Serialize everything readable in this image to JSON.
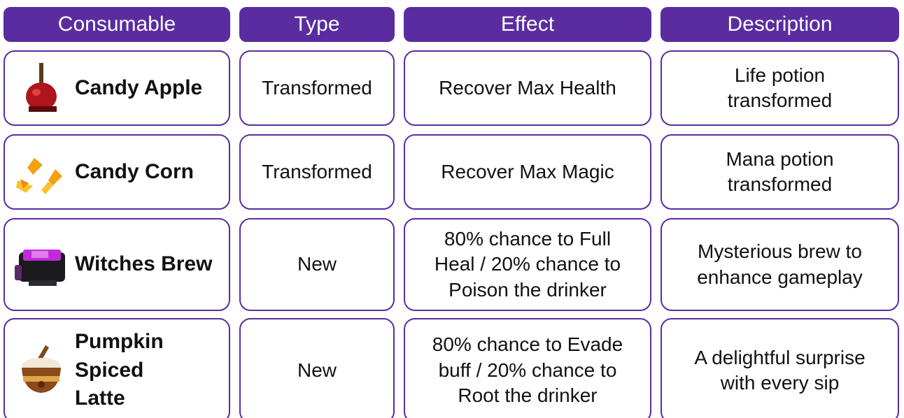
{
  "table": {
    "headers": [
      "Consumable",
      "Type",
      "Effect",
      "Description"
    ],
    "rows": [
      [
        "Candy Apple",
        "Transformed",
        "Recover Max Health",
        "Life potion transformed"
      ],
      [
        "Candy Corn",
        "Transformed",
        "Recover Max Magic",
        "Mana potion transformed"
      ],
      [
        "Witches Brew",
        "New",
        "80% chance to Full Heal / 20% chance to Poison the drinker",
        "Mysterious brew to enhance gameplay"
      ],
      [
        "Pumpkin Spiced Latte",
        "New",
        "80% chance to Evade buff / 20% chance to Root the drinker",
        "A delightful surprise with every sip"
      ]
    ]
  }
}
